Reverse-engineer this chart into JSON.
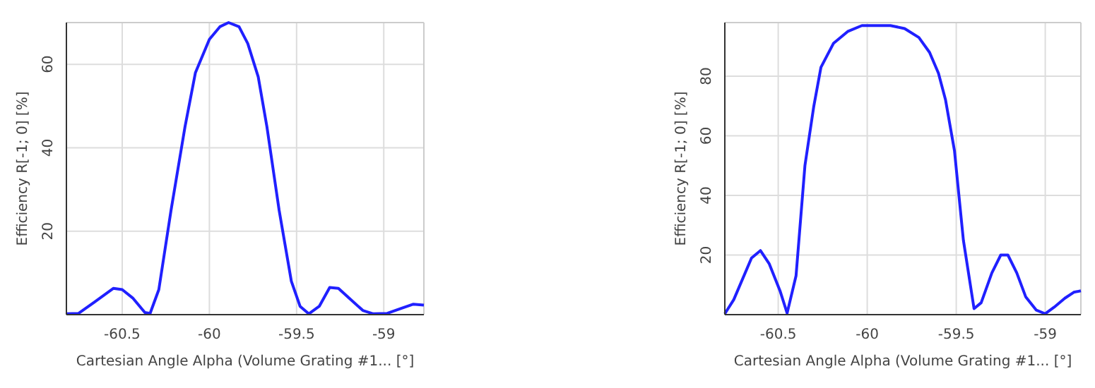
{
  "chart_data": [
    {
      "type": "line",
      "xlabel": "Cartesian Angle Alpha (Volume Grating #1... [°]",
      "ylabel": "Efficiency R[-1; 0] [%]",
      "xlim": [
        -60.82,
        -58.77
      ],
      "ylim": [
        0,
        70
      ],
      "xticks": [
        -60.5,
        -60,
        -59.5,
        -59
      ],
      "yticks": [
        20,
        40,
        60
      ],
      "grid": true,
      "series": [
        {
          "color": "#2020ff",
          "x": [
            -60.82,
            -60.75,
            -60.66,
            -60.55,
            -60.5,
            -60.44,
            -60.37,
            -60.34,
            -60.29,
            -60.22,
            -60.14,
            -60.08,
            -60.0,
            -59.94,
            -59.89,
            -59.83,
            -59.78,
            -59.72,
            -59.67,
            -59.6,
            -59.53,
            -59.48,
            -59.43,
            -59.37,
            -59.31,
            -59.26,
            -59.2,
            -59.12,
            -59.06,
            -58.98,
            -58.9,
            -58.83,
            -58.77
          ],
          "values": [
            0.2,
            0.3,
            3,
            6.3,
            6,
            4,
            0.5,
            0.3,
            6,
            25,
            45,
            58,
            66,
            69,
            70,
            69,
            65,
            57,
            45,
            25,
            8,
            2,
            0.2,
            2,
            6.5,
            6.3,
            4,
            1,
            0.2,
            0.3,
            1.5,
            2.5,
            2.3
          ]
        }
      ]
    },
    {
      "type": "line",
      "xlabel": "Cartesian Angle Alpha (Volume Grating #1... [°]",
      "ylabel": "Efficiency R[-1; 0] [%]",
      "xlim": [
        -60.8,
        -58.8
      ],
      "ylim": [
        0,
        98
      ],
      "xticks": [
        -60.5,
        -60,
        -59.5,
        -59
      ],
      "yticks": [
        20,
        40,
        60,
        80
      ],
      "grid": true,
      "series": [
        {
          "color": "#2020ff",
          "x": [
            -60.8,
            -60.75,
            -60.65,
            -60.6,
            -60.55,
            -60.49,
            -60.45,
            -60.4,
            -60.35,
            -60.3,
            -60.26,
            -60.19,
            -60.11,
            -60.03,
            -59.95,
            -59.87,
            -59.79,
            -59.71,
            -59.65,
            -59.6,
            -59.56,
            -59.51,
            -59.46,
            -59.4,
            -59.36,
            -59.3,
            -59.25,
            -59.21,
            -59.16,
            -59.11,
            -59.05,
            -59.0,
            -58.95,
            -58.89,
            -58.84,
            -58.8
          ],
          "values": [
            0.3,
            5,
            19,
            21.5,
            17,
            8,
            0.5,
            13,
            50,
            70,
            83,
            91,
            95,
            97,
            97,
            97,
            96,
            93,
            88,
            81,
            72,
            55,
            25,
            2,
            4,
            14,
            20,
            20,
            14,
            6,
            1.5,
            0.3,
            2.5,
            5.5,
            7.5,
            8
          ]
        }
      ]
    }
  ]
}
